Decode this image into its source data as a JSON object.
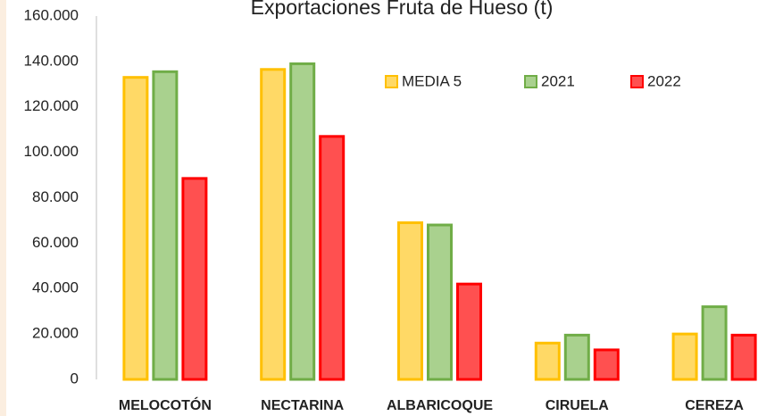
{
  "chart_data": {
    "type": "bar",
    "title": "Exportaciones Fruta de Hueso (t)",
    "categories": [
      "MELOCOTÓN",
      "NECTARINA",
      "ALBARICOQUE",
      "CIRUELA",
      "CEREZA"
    ],
    "series": [
      {
        "name": "MEDIA 5",
        "color": "#ffd966",
        "stroke": "#ffc000",
        "values": [
          133000,
          136500,
          69000,
          16000,
          20000
        ]
      },
      {
        "name": "2021",
        "color": "#a9d18e",
        "stroke": "#70ad47",
        "values": [
          135500,
          139000,
          68000,
          19500,
          32000
        ]
      },
      {
        "name": "2022",
        "color": "#ff5050",
        "stroke": "#ff0000",
        "values": [
          88500,
          107000,
          42000,
          13000,
          19500
        ]
      }
    ],
    "ylim": [
      0,
      160000
    ],
    "yticks": [
      0,
      {
        "value": 20000,
        "label": "20.000"
      },
      {
        "value": 40000,
        "label": "40.000"
      },
      {
        "value": 60000,
        "label": "60.000"
      },
      {
        "value": 80000,
        "label": "80.000"
      },
      {
        "value": 100000,
        "label": "100.000"
      },
      {
        "value": 120000,
        "label": "120.000"
      },
      {
        "value": 140000,
        "label": "140.000"
      },
      {
        "value": 160000,
        "label": "160.000"
      }
    ],
    "grid": false,
    "legend": "top-right"
  }
}
